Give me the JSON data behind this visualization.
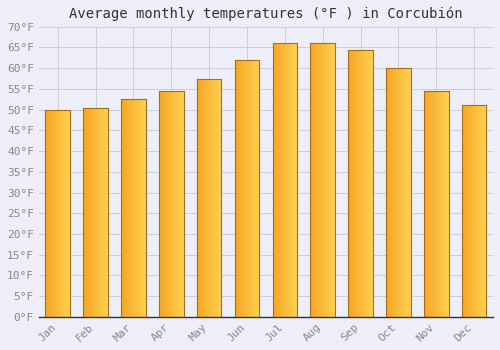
{
  "title": "Average monthly temperatures (°F ) in Corcubión",
  "months": [
    "Jan",
    "Feb",
    "Mar",
    "Apr",
    "May",
    "Jun",
    "Jul",
    "Aug",
    "Sep",
    "Oct",
    "Nov",
    "Dec"
  ],
  "values": [
    50,
    50.5,
    52.5,
    54.5,
    57.5,
    62,
    66,
    66,
    64.5,
    60,
    54.5,
    51
  ],
  "bar_color_left": "#F5A623",
  "bar_color_right": "#FFD050",
  "bar_edge_color": "#A07020",
  "background_color": "#EEEEF8",
  "plot_bg_color": "#EEEEF8",
  "grid_color": "#CCCCDD",
  "text_color": "#888888",
  "axis_color": "#333333",
  "ylim": [
    0,
    70
  ],
  "ytick_step": 5,
  "title_fontsize": 10,
  "tick_fontsize": 8,
  "bar_width": 0.65
}
